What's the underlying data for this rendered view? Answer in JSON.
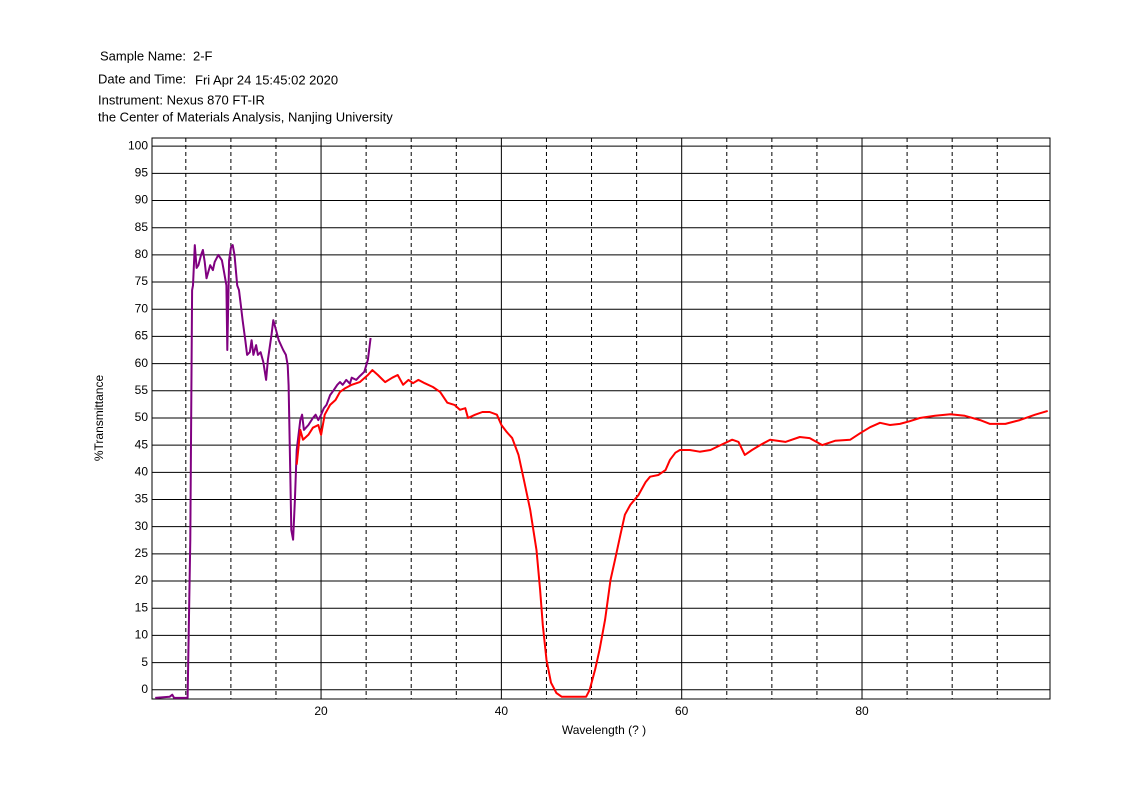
{
  "header": {
    "sample_label": "Sample Name:",
    "sample_value": "2-F",
    "date_label": "Date and Time:",
    "date_value": "Fri Apr 24 15:45:02 2020",
    "instrument": "Instrument: Nexus 870 FT-IR",
    "institution": "the Center of Materials Analysis, Nanjing University"
  },
  "chart_data": {
    "type": "line",
    "x_label": "Wavelength (?  )",
    "y_label": "%Transmittance",
    "xlim": [
      1.25,
      100.85
    ],
    "ylim": [
      -1.7,
      101.5
    ],
    "xticks": [
      20,
      40,
      60,
      80
    ],
    "x_minor_grid": [
      5,
      10,
      15,
      25,
      30,
      35,
      45,
      50,
      55,
      65,
      70,
      75,
      85,
      90,
      95
    ],
    "yticks": [
      0,
      5,
      10,
      15,
      20,
      25,
      30,
      35,
      40,
      45,
      50,
      55,
      60,
      65,
      70,
      75,
      80,
      85,
      90,
      95,
      100
    ],
    "grid": true,
    "series": [
      {
        "color": "#800080",
        "x": [
          1.6,
          3.2,
          3.5,
          3.7,
          5.2,
          5.5,
          5.7,
          5.8,
          6.0,
          6.2,
          6.4,
          6.7,
          6.9,
          7.1,
          7.3,
          7.7,
          8.0,
          8.2,
          8.6,
          9.0,
          9.2,
          9.5,
          9.6,
          9.8,
          10.0,
          10.2,
          10.4,
          10.7,
          10.9,
          11.1,
          11.3,
          11.6,
          11.8,
          12.1,
          12.3,
          12.5,
          12.8,
          13.0,
          13.3,
          13.6,
          13.9,
          14.1,
          14.5,
          14.7,
          15.0,
          15.3,
          15.8,
          16.1,
          16.3,
          16.4,
          16.6,
          16.7,
          16.9,
          17.1,
          17.3,
          17.7,
          17.9,
          18.1,
          18.6,
          19.1,
          19.4,
          19.7,
          20.0,
          20.3,
          20.6,
          21.0,
          21.4,
          21.8,
          22.1,
          22.4,
          22.8,
          23.2,
          23.4,
          23.9,
          24.3,
          24.8,
          25.2,
          25.5
        ],
        "values": [
          -1.5,
          -1.3,
          -0.9,
          -1.5,
          -1.5,
          27.6,
          73.5,
          74.4,
          81.8,
          77.6,
          78.1,
          80.0,
          80.9,
          78.7,
          75.7,
          78.1,
          77.2,
          78.7,
          80.0,
          79.0,
          77.2,
          74.4,
          62.5,
          79.0,
          81.3,
          81.8,
          80.0,
          74.4,
          73.5,
          70.8,
          68.0,
          64.3,
          61.6,
          62.1,
          64.3,
          61.6,
          63.4,
          61.6,
          62.1,
          60.3,
          57.0,
          60.7,
          65.3,
          68.0,
          66.2,
          64.3,
          62.5,
          61.6,
          59.7,
          56.0,
          38.6,
          29.4,
          27.6,
          34.9,
          44.1,
          49.6,
          50.6,
          47.8,
          48.7,
          50.0,
          50.6,
          49.6,
          50.6,
          51.8,
          52.4,
          54.2,
          55.1,
          56.1,
          56.6,
          56.1,
          57.0,
          56.3,
          57.4,
          57.0,
          57.7,
          58.5,
          60.7,
          64.7
        ]
      },
      {
        "color": "#ff0000",
        "x": [
          17.3,
          17.7,
          18.0,
          18.6,
          19.1,
          19.7,
          20.0,
          20.4,
          21.0,
          21.6,
          22.1,
          22.7,
          23.4,
          24.3,
          25.2,
          25.7,
          26.3,
          27.1,
          27.9,
          28.5,
          29.1,
          29.7,
          30.2,
          30.8,
          31.5,
          32.4,
          33.2,
          34.0,
          34.8,
          35.4,
          36.0,
          36.3,
          37.1,
          37.9,
          38.7,
          39.5,
          40.0,
          40.6,
          41.2,
          41.9,
          42.5,
          43.2,
          43.9,
          44.3,
          44.6,
          45.0,
          45.5,
          46.1,
          46.7,
          47.8,
          49.4,
          49.8,
          50.4,
          50.9,
          51.5,
          52.1,
          52.6,
          53.2,
          53.7,
          54.3,
          55.2,
          56.0,
          56.5,
          57.4,
          58.2,
          58.7,
          59.3,
          59.8,
          60.9,
          62.0,
          63.2,
          64.3,
          65.6,
          66.3,
          67.0,
          67.8,
          68.7,
          69.8,
          71.5,
          73.1,
          74.2,
          75.6,
          77.0,
          78.7,
          79.8,
          80.9,
          82.0,
          83.1,
          84.2,
          85.3,
          86.4,
          88.1,
          89.8,
          91.4,
          93.1,
          94.2,
          95.9,
          97.5,
          99.2,
          100.6
        ],
        "values": [
          41.4,
          47.8,
          46.0,
          46.9,
          48.2,
          48.7,
          46.9,
          50.6,
          52.4,
          53.3,
          54.8,
          55.5,
          56.1,
          56.6,
          57.9,
          58.8,
          57.9,
          56.6,
          57.4,
          57.9,
          56.1,
          57.0,
          56.4,
          57.0,
          56.4,
          55.7,
          54.8,
          52.8,
          52.4,
          51.5,
          51.8,
          50.0,
          50.6,
          51.1,
          51.1,
          50.6,
          48.7,
          47.4,
          46.3,
          43.2,
          38.6,
          33.1,
          25.7,
          18.4,
          11.9,
          5.5,
          1.3,
          -0.6,
          -1.3,
          -1.3,
          -1.3,
          0.0,
          3.7,
          7.4,
          12.9,
          20.2,
          23.9,
          28.5,
          32.2,
          34.0,
          35.8,
          38.2,
          39.2,
          39.5,
          40.4,
          42.3,
          43.6,
          44.1,
          44.1,
          43.8,
          44.1,
          45.0,
          46.0,
          45.6,
          43.2,
          44.1,
          45.0,
          46.0,
          45.6,
          46.5,
          46.3,
          45.0,
          45.8,
          46.0,
          47.2,
          48.3,
          49.1,
          48.7,
          48.9,
          49.4,
          50.0,
          50.4,
          50.7,
          50.4,
          49.6,
          48.9,
          48.9,
          49.6,
          50.6,
          51.3
        ]
      }
    ]
  }
}
